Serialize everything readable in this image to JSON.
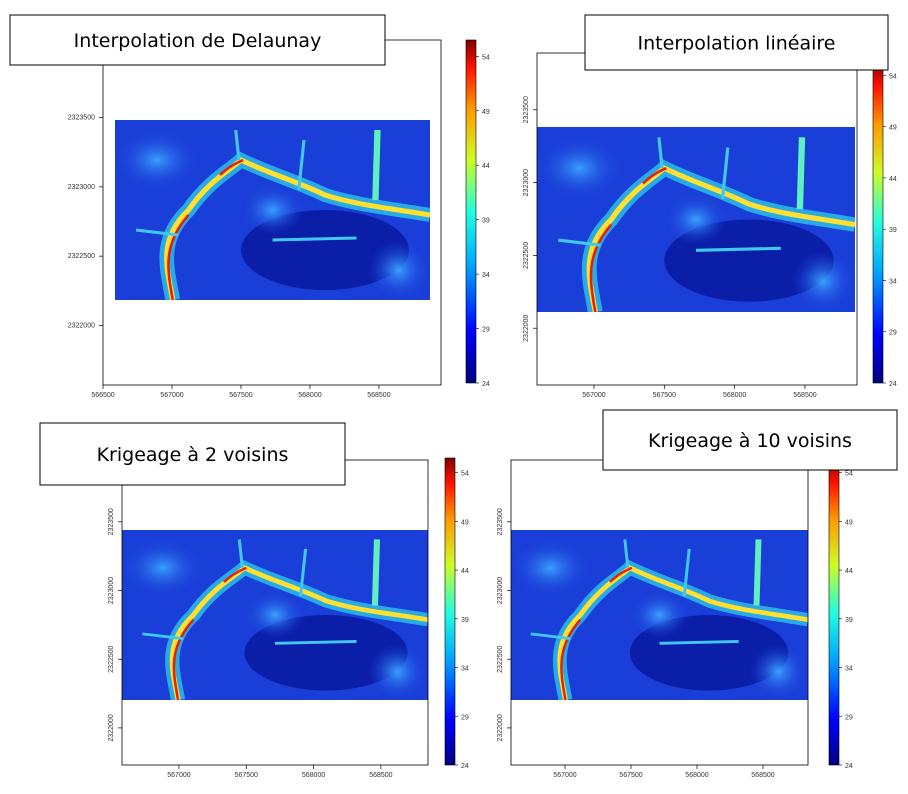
{
  "chart_data": [
    {
      "type": "heatmap",
      "title": "Interpolation de Delaunay",
      "xlim": [
        566500,
        568950
      ],
      "xticks": [
        566500,
        567000,
        567500,
        568000,
        568500
      ],
      "ylim": [
        2321570,
        2324060
      ],
      "yticks": [
        2322000,
        2322500,
        2323000,
        2323500
      ],
      "zlim": [
        24,
        55.5
      ],
      "zticks": [
        24,
        29,
        34,
        39,
        44,
        49,
        54
      ]
    },
    {
      "type": "heatmap",
      "title": "Interpolation linéaire",
      "xlim": [
        566595,
        568870
      ],
      "xticks": [
        567000,
        567500,
        568000,
        568500
      ],
      "ylim": [
        2321610,
        2323890
      ],
      "yticks": [
        2322000,
        2322500,
        2323000,
        2323500
      ],
      "zlim": [
        24,
        55.5
      ],
      "zticks": [
        24,
        29,
        34,
        39,
        44,
        49,
        54
      ]
    },
    {
      "type": "heatmap",
      "title": "Krigeage à 2 voisins",
      "xlim": [
        566577,
        568850
      ],
      "xticks": [
        567000,
        567500,
        568000,
        568500
      ],
      "ylim": [
        2321730,
        2323950
      ],
      "yticks": [
        2322000,
        2322500,
        2323000,
        2323500
      ],
      "zlim": [
        24,
        55.5
      ],
      "zticks": [
        24,
        29,
        34,
        39,
        44,
        49,
        54
      ]
    },
    {
      "type": "heatmap",
      "title": "Krigeage à 10 voisins",
      "xlim": [
        566591,
        568841
      ],
      "xticks": [
        567000,
        567500,
        568000,
        568500
      ],
      "ylim": [
        2321730,
        2323950
      ],
      "yticks": [
        2322000,
        2322500,
        2323000,
        2323500
      ],
      "zlim": [
        24,
        55.5
      ],
      "zticks": [
        24,
        29,
        34,
        39,
        44,
        49,
        54
      ]
    }
  ]
}
